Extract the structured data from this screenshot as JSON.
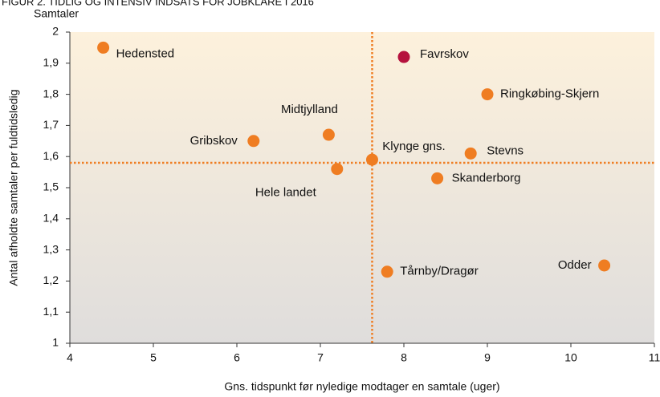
{
  "chart_data": {
    "type": "scatter",
    "title": "FIGUR 2. TIDLIG OG INTENSIV INDSATS FOR JOBKLARE I 2016",
    "y_unit_label": "Samtaler",
    "xlabel": "Gns. tidspunkt før nyledige modtager en samtale (uger)",
    "ylabel": "Antal afholdte samtaler per fuldtidsledig",
    "xlim": [
      4,
      11
    ],
    "xticks": [
      4,
      5,
      6,
      7,
      8,
      9,
      10,
      11
    ],
    "ylim": [
      1,
      2
    ],
    "yticks": [
      1,
      {
        "value": 1.1,
        "label": "1,1"
      },
      {
        "value": 1.2,
        "label": "1,2"
      },
      {
        "value": 1.3,
        "label": "1,3"
      },
      {
        "value": 1.4,
        "label": "1,4"
      },
      {
        "value": 1.5,
        "label": "1,5"
      },
      {
        "value": 1.6,
        "label": "1,6"
      },
      {
        "value": 1.7,
        "label": "1,7"
      },
      {
        "value": 1.8,
        "label": "1,8"
      },
      {
        "value": 1.9,
        "label": "1,9"
      },
      2
    ],
    "reference_lines": {
      "x": 7.62,
      "y": 1.58,
      "color": "#ef7d22"
    },
    "points": [
      {
        "label": "Hedensted",
        "x": 4.4,
        "y": 1.95,
        "color": "#ef7d22"
      },
      {
        "label": "Favrskov",
        "x": 8.0,
        "y": 1.92,
        "color": "#b5123e"
      },
      {
        "label": "Ringkøbing-Skjern",
        "x": 9.0,
        "y": 1.8,
        "color": "#ef7d22"
      },
      {
        "label": "Midtjylland",
        "x": 7.1,
        "y": 1.67,
        "color": "#ef7d22"
      },
      {
        "label": "Gribskov",
        "x": 6.2,
        "y": 1.65,
        "color": "#ef7d22"
      },
      {
        "label": "Stevns",
        "x": 8.8,
        "y": 1.61,
        "color": "#ef7d22"
      },
      {
        "label": "Klynge gns.",
        "x": 7.62,
        "y": 1.59,
        "color": "#ef7d22"
      },
      {
        "label": "Hele landet",
        "x": 7.2,
        "y": 1.56,
        "color": "#ef7d22"
      },
      {
        "label": "Skanderborg",
        "x": 8.4,
        "y": 1.53,
        "color": "#ef7d22"
      },
      {
        "label": "Odder",
        "x": 10.4,
        "y": 1.25,
        "color": "#ef7d22"
      },
      {
        "label": "Tårnby/Dragør",
        "x": 7.8,
        "y": 1.23,
        "color": "#ef7d22"
      }
    ]
  }
}
